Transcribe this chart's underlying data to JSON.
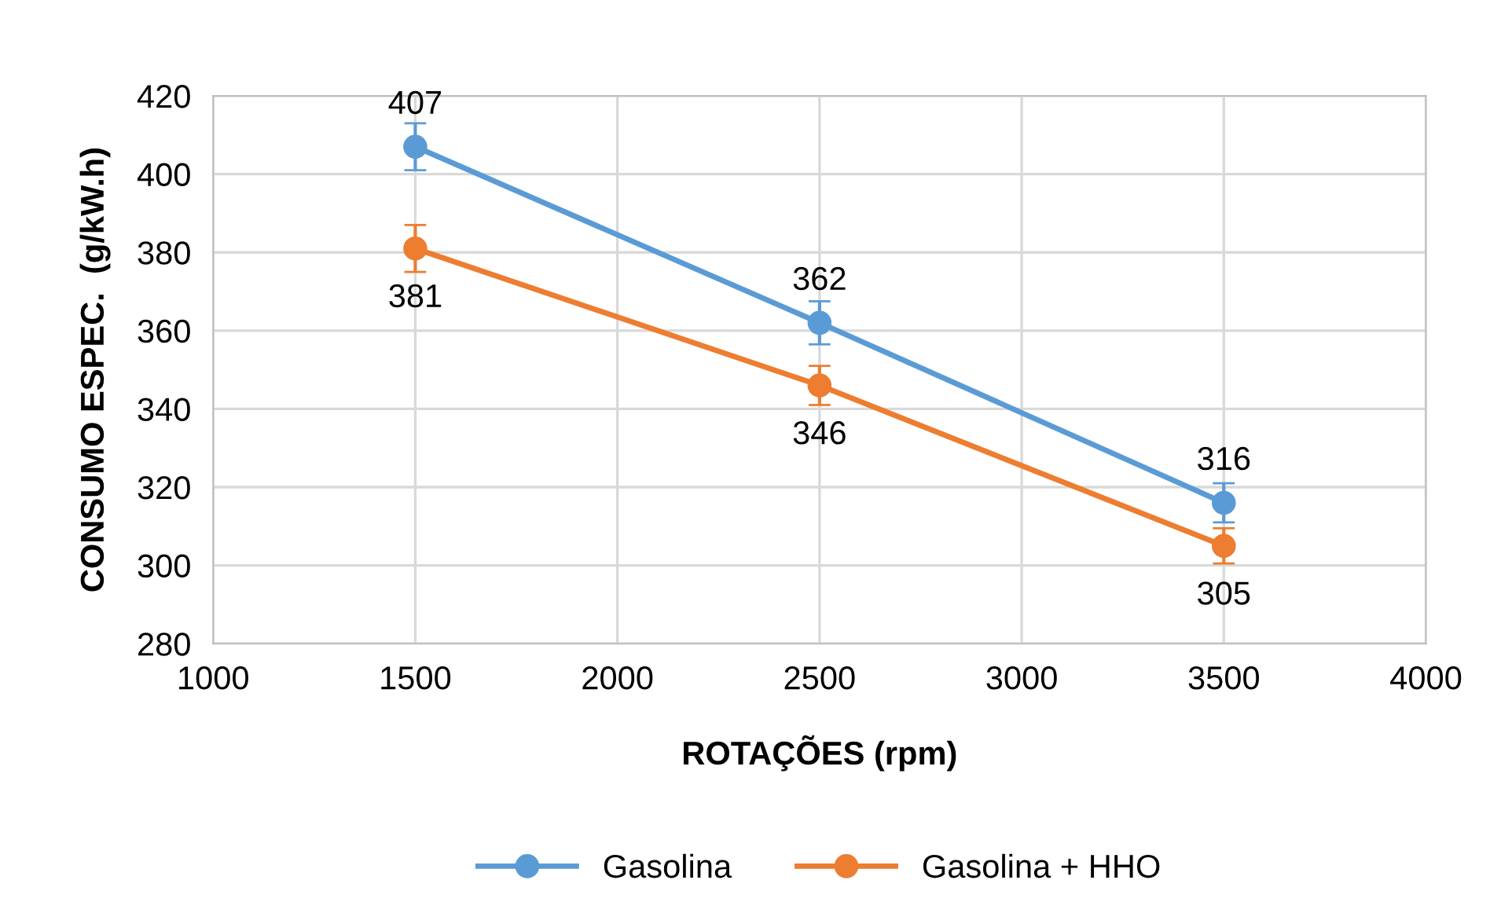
{
  "chart_data": {
    "type": "line",
    "xlabel": "ROTAÇÕES (rpm)",
    "ylabel": "CONSUMO ESPEC.  (g/kW.h)",
    "x": [
      1500,
      2500,
      3500
    ],
    "series": [
      {
        "name": "Gasolina",
        "color": "#5b9bd5",
        "values": [
          407,
          362,
          316
        ],
        "errors": [
          6,
          5.5,
          5
        ]
      },
      {
        "name": "Gasolina + HHO",
        "color": "#ed7d31",
        "values": [
          381,
          346,
          305
        ],
        "errors": [
          6,
          5,
          4.5
        ]
      }
    ],
    "xlim": [
      1000,
      4000
    ],
    "xticks": [
      1000,
      1500,
      2000,
      2500,
      3000,
      3500,
      4000
    ],
    "ylim": [
      280,
      420
    ],
    "yticks": [
      280,
      300,
      320,
      340,
      360,
      380,
      400,
      420
    ],
    "grid": true,
    "legend": "bottom",
    "marker": "circle",
    "line_style": "solid",
    "data_labels": true
  }
}
